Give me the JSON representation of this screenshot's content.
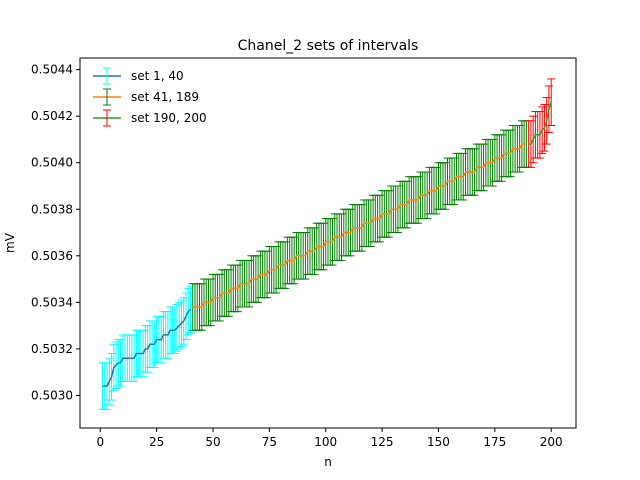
{
  "chart_data": {
    "type": "line",
    "title": "Chanel_2 sets of intervals",
    "xlabel": "n",
    "ylabel": "mV",
    "xlim": [
      -9,
      211
    ],
    "ylim": [
      0.50286,
      0.50445
    ],
    "xticks": [
      0,
      25,
      50,
      75,
      100,
      125,
      150,
      175,
      200
    ],
    "yticks": [
      0.503,
      0.5032,
      0.5034,
      0.5036,
      0.5038,
      0.504,
      0.5042,
      0.5044
    ],
    "ytick_labels": [
      "0.5030",
      "0.5032",
      "0.5034",
      "0.5036",
      "0.5038",
      "0.5040",
      "0.5042",
      "0.5044"
    ],
    "grid": false,
    "legend_position": "top-left",
    "error_halfwidth": 0.0001,
    "series": [
      {
        "name": "set 1, 40",
        "line_color": "#1f77b4",
        "errorbar_color": "#00ffff",
        "x": [
          1,
          2,
          3,
          4,
          5,
          6,
          7,
          8,
          9,
          10,
          11,
          12,
          13,
          14,
          15,
          16,
          17,
          18,
          19,
          20,
          21,
          22,
          23,
          24,
          25,
          26,
          27,
          28,
          29,
          30,
          31,
          32,
          33,
          34,
          35,
          36,
          37,
          38,
          39,
          40
        ],
        "y": [
          0.50304,
          0.50304,
          0.50304,
          0.50306,
          0.50308,
          0.50312,
          0.50313,
          0.50314,
          0.50314,
          0.50316,
          0.50316,
          0.50316,
          0.50316,
          0.50316,
          0.50316,
          0.50318,
          0.50318,
          0.50318,
          0.50318,
          0.5032,
          0.5032,
          0.50322,
          0.50322,
          0.50322,
          0.50324,
          0.50324,
          0.50324,
          0.50326,
          0.50326,
          0.50326,
          0.50328,
          0.50328,
          0.50328,
          0.50329,
          0.5033,
          0.50331,
          0.50332,
          0.50334,
          0.50336,
          0.50337
        ]
      },
      {
        "name": "set 41, 189",
        "line_color": "#ff7f0e",
        "errorbar_color": "#008000",
        "x_start": 41,
        "x_end": 189,
        "y_start": 0.50337,
        "y_end": 0.50408
      },
      {
        "name": "set 190, 200",
        "line_color": "#2ca02c",
        "errorbar_color": "#ff0000",
        "x": [
          190,
          191,
          192,
          193,
          194,
          195,
          196,
          197,
          198,
          199,
          200
        ],
        "y": [
          0.50408,
          0.50408,
          0.5041,
          0.50412,
          0.50412,
          0.50412,
          0.50414,
          0.50415,
          0.50418,
          0.50423,
          0.50426
        ]
      }
    ]
  }
}
